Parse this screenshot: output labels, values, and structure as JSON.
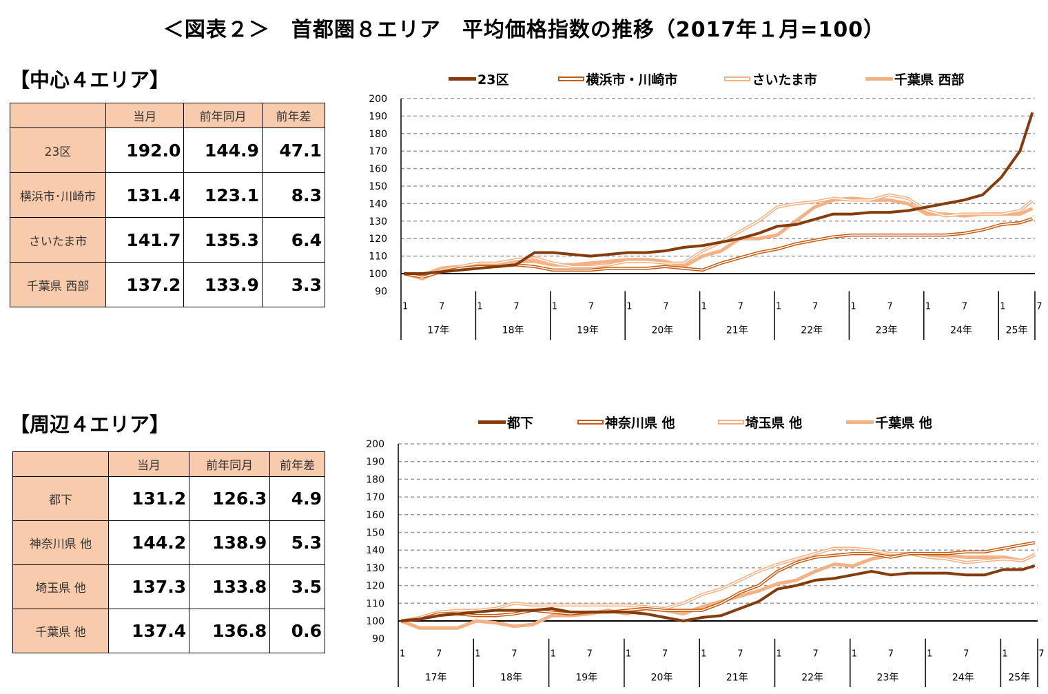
{
  "title": "＜図表２＞　首都圏８エリア　平均価格指数の推移（2017年１月=100）",
  "tables": [
    {
      "heading": "【中心４エリア】",
      "columns": [
        "",
        "当月",
        "前年同月",
        "前年差"
      ],
      "rows": [
        {
          "area": "23区",
          "current": "192.0",
          "prev_year": "144.9",
          "diff": "47.1"
        },
        {
          "area": "横浜市･川崎市",
          "current": "131.4",
          "prev_year": "123.1",
          "diff": "8.3"
        },
        {
          "area": "さいたま市",
          "current": "141.7",
          "prev_year": "135.3",
          "diff": "6.4"
        },
        {
          "area": "千葉県 西部",
          "current": "137.2",
          "prev_year": "133.9",
          "diff": "3.3"
        }
      ]
    },
    {
      "heading": "【周辺４エリア】",
      "columns": [
        "",
        "当月",
        "前年同月",
        "前年差"
      ],
      "rows": [
        {
          "area": "都下",
          "current": "131.2",
          "prev_year": "126.3",
          "diff": "4.9"
        },
        {
          "area": "神奈川県 他",
          "current": "144.2",
          "prev_year": "138.9",
          "diff": "5.3"
        },
        {
          "area": "埼玉県 他",
          "current": "137.3",
          "prev_year": "133.8",
          "diff": "3.5"
        },
        {
          "area": "千葉県 他",
          "current": "137.4",
          "prev_year": "136.8",
          "diff": "0.6"
        }
      ]
    }
  ],
  "chart_data": [
    {
      "type": "line",
      "ylim": [
        90,
        200
      ],
      "yticks": [
        90,
        100,
        110,
        120,
        130,
        140,
        150,
        160,
        170,
        180,
        190,
        200
      ],
      "baseline": 100,
      "grid": true,
      "legend": "top",
      "month_tick_labels": [
        "1",
        "7"
      ],
      "year_labels": [
        "17年",
        "18年",
        "19年",
        "20年",
        "21年",
        "22年",
        "23年",
        "24年",
        "25年"
      ],
      "x": [
        "2017-01",
        "2017-04",
        "2017-07",
        "2017-10",
        "2018-01",
        "2018-04",
        "2018-07",
        "2018-10",
        "2019-01",
        "2019-04",
        "2019-07",
        "2019-10",
        "2020-01",
        "2020-04",
        "2020-07",
        "2020-10",
        "2021-01",
        "2021-04",
        "2021-07",
        "2021-10",
        "2022-01",
        "2022-04",
        "2022-07",
        "2022-10",
        "2023-01",
        "2023-04",
        "2023-07",
        "2023-10",
        "2024-01",
        "2024-04",
        "2024-07",
        "2024-10",
        "2025-01",
        "2025-04",
        "2025-06"
      ],
      "series": [
        {
          "name": "23区",
          "color": "#843C0C",
          "style": "solid-thick",
          "values": [
            100,
            100,
            101,
            102,
            103,
            104,
            105,
            112,
            112,
            111,
            110,
            111,
            112,
            112,
            113,
            115,
            116,
            118,
            120,
            123,
            127,
            128,
            131,
            134,
            134,
            135,
            135,
            136,
            138,
            140,
            142,
            145,
            155,
            170,
            192
          ]
        },
        {
          "name": "横浜市・川崎市",
          "color": "#C55A11",
          "style": "double",
          "values": [
            100,
            98,
            101,
            103,
            104,
            104,
            105,
            104,
            102,
            102,
            102,
            103,
            103,
            103,
            104,
            103,
            102,
            106,
            109,
            112,
            114,
            117,
            119,
            121,
            122,
            122,
            122,
            122,
            122,
            122,
            123,
            125,
            128,
            129,
            131.4
          ]
        },
        {
          "name": "さいたま市",
          "color": "#F4B183",
          "style": "double",
          "values": [
            100,
            97,
            102,
            104,
            106,
            106,
            108,
            109,
            106,
            104,
            104,
            105,
            107,
            107,
            106,
            106,
            113,
            118,
            124,
            130,
            138,
            140,
            141,
            143,
            142,
            142,
            145,
            143,
            136,
            133,
            134,
            134,
            134,
            136,
            141.7
          ]
        },
        {
          "name": "千葉県 西部",
          "color": "#F4B183",
          "style": "solid-thick",
          "values": [
            100,
            99,
            103,
            104,
            105,
            106,
            107,
            107,
            105,
            105,
            106,
            107,
            108,
            108,
            107,
            104,
            110,
            113,
            120,
            120,
            122,
            130,
            138,
            142,
            143,
            142,
            142,
            140,
            134,
            134,
            133,
            134,
            134,
            134,
            137.2
          ]
        }
      ]
    },
    {
      "type": "line",
      "ylim": [
        90,
        200
      ],
      "yticks": [
        90,
        100,
        110,
        120,
        130,
        140,
        150,
        160,
        170,
        180,
        190,
        200
      ],
      "baseline": 100,
      "grid": true,
      "legend": "top",
      "month_tick_labels": [
        "1",
        "7"
      ],
      "year_labels": [
        "17年",
        "18年",
        "19年",
        "20年",
        "21年",
        "22年",
        "23年",
        "24年",
        "25年"
      ],
      "x": [
        "2017-01",
        "2017-04",
        "2017-07",
        "2017-10",
        "2018-01",
        "2018-04",
        "2018-07",
        "2018-10",
        "2019-01",
        "2019-04",
        "2019-07",
        "2019-10",
        "2020-01",
        "2020-04",
        "2020-07",
        "2020-10",
        "2021-01",
        "2021-04",
        "2021-07",
        "2021-10",
        "2022-01",
        "2022-04",
        "2022-07",
        "2022-10",
        "2023-01",
        "2023-04",
        "2023-07",
        "2023-10",
        "2024-01",
        "2024-04",
        "2024-07",
        "2024-10",
        "2025-01",
        "2025-04",
        "2025-06"
      ],
      "series": [
        {
          "name": "都下",
          "color": "#843C0C",
          "style": "solid-thick",
          "values": [
            100,
            101,
            103,
            104,
            105,
            106,
            106,
            106,
            107,
            105,
            105,
            105,
            105,
            104,
            102,
            100,
            102,
            103,
            107,
            111,
            118,
            120,
            123,
            124,
            126,
            128,
            126,
            127,
            127,
            127,
            126,
            126,
            129,
            129,
            131.2
          ]
        },
        {
          "name": "神奈川県 他",
          "color": "#C55A11",
          "style": "double",
          "values": [
            100,
            101,
            104,
            104,
            103,
            103,
            104,
            106,
            105,
            104,
            105,
            105,
            106,
            107,
            106,
            106,
            106,
            110,
            116,
            120,
            128,
            133,
            136,
            137,
            138,
            138,
            136,
            138,
            138,
            138,
            139,
            139,
            141,
            143,
            144.2
          ]
        },
        {
          "name": "埼玉県 他",
          "color": "#F4B183",
          "style": "double",
          "values": [
            100,
            102,
            105,
            106,
            106,
            107,
            110,
            109,
            109,
            109,
            109,
            109,
            109,
            108,
            107,
            110,
            115,
            118,
            123,
            128,
            132,
            135,
            138,
            141,
            141,
            140,
            138,
            138,
            136,
            135,
            133,
            134,
            135,
            134,
            137.3
          ]
        },
        {
          "name": "千葉県 他",
          "color": "#F4B183",
          "style": "solid-thick",
          "values": [
            100,
            96,
            96,
            96,
            100,
            99,
            97,
            98,
            103,
            103,
            104,
            106,
            104,
            107,
            106,
            104,
            108,
            111,
            114,
            117,
            121,
            123,
            128,
            132,
            131,
            135,
            137,
            138,
            137,
            137,
            136,
            136,
            136,
            134,
            137.4
          ]
        }
      ]
    }
  ]
}
